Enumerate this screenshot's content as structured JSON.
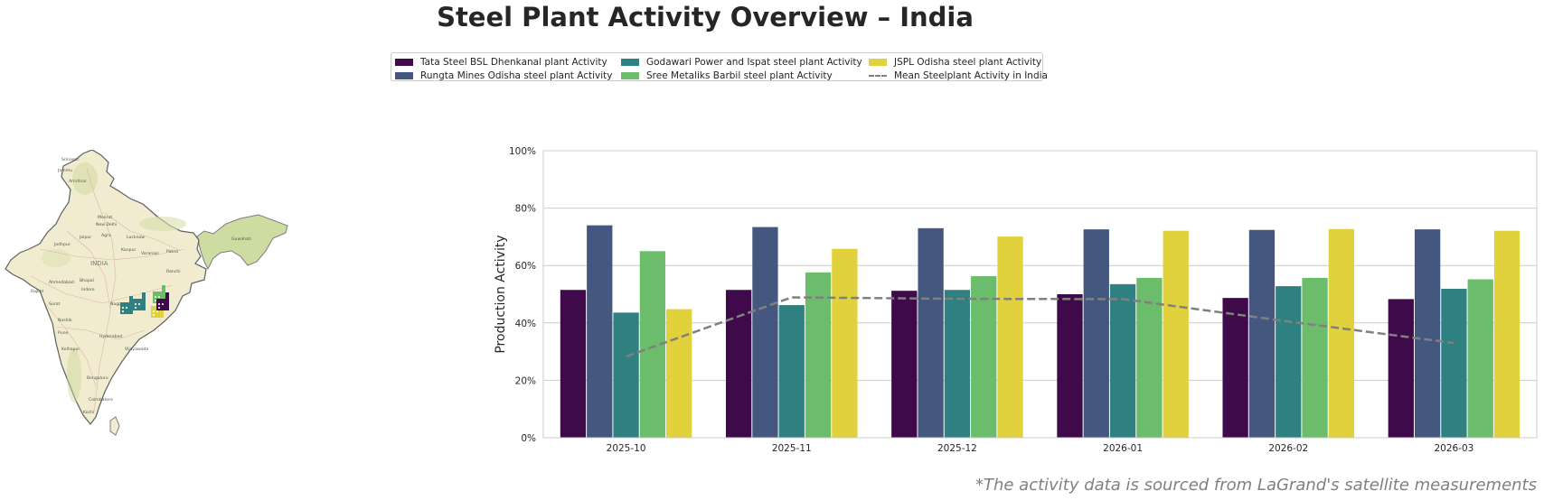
{
  "title": "Steel Plant Activity Overview – India",
  "footnote": "*The activity data is sourced from LaGrand's satellite measurements",
  "legend": {
    "entries": [
      {
        "label": "Tata Steel BSL Dhenkanal plant Activity",
        "color": "#3f0a49",
        "kind": "bar"
      },
      {
        "label": "Rungta Mines Odisha steel plant Activity",
        "color": "#44577f",
        "kind": "bar"
      },
      {
        "label": "Godawari Power and Ispat steel plant Activity",
        "color": "#2e8180",
        "kind": "bar"
      },
      {
        "label": "Sree Metaliks Barbil steel plant Activity",
        "color": "#6cbd6b",
        "kind": "bar"
      },
      {
        "label": "JSPL Odisha steel plant Activity",
        "color": "#e1d13c",
        "kind": "bar"
      },
      {
        "label": "Mean Steelplant Activity in India",
        "color": "#808080",
        "kind": "dashed-line"
      }
    ]
  },
  "map": {
    "country_label": "INDIA",
    "city_labels": [
      "Srinagar",
      "Jammu",
      "Amritsar",
      "Meerut",
      "New Delhi",
      "Jaipur",
      "Agra",
      "Lucknow",
      "Jodhpur",
      "Kanpur",
      "Varanasi",
      "Patna",
      "Ranchi",
      "Guwahati",
      "Ahmedabad",
      "Bhopal",
      "Indore",
      "Rajkot",
      "Surat",
      "Nagpur",
      "Nashik",
      "Pune",
      "Hyderabad",
      "Kolhapur",
      "Vijayawada",
      "Bengaluru",
      "Coimbatore",
      "Kochi"
    ],
    "marker_icons": [
      "factory-icon",
      "factory-icon",
      "factory-icon",
      "factory-icon",
      "factory-icon"
    ]
  },
  "chart_data": {
    "type": "bar",
    "title": "",
    "xlabel": "",
    "ylabel": "Production Activity",
    "ylim": [
      0,
      100
    ],
    "y_tick_labels": [
      "0%",
      "20%",
      "40%",
      "60%",
      "80%",
      "100%"
    ],
    "grid": "horizontal",
    "categories": [
      "2025-10",
      "2025-11",
      "2025-12",
      "2026-01",
      "2026-02",
      "2026-03"
    ],
    "series": [
      {
        "name": "Tata Steel BSL Dhenkanal plant Activity",
        "color": "#3f0a49",
        "values": [
          51.5,
          51.5,
          51.2,
          50.0,
          48.7,
          48.3
        ]
      },
      {
        "name": "Rungta Mines Odisha steel plant Activity",
        "color": "#44577f",
        "values": [
          74.0,
          73.4,
          73.0,
          72.6,
          72.4,
          72.6
        ]
      },
      {
        "name": "Godawari Power and Ispat steel plant Activity",
        "color": "#2e8180",
        "values": [
          43.6,
          46.2,
          51.5,
          53.5,
          52.8,
          51.9
        ]
      },
      {
        "name": "Sree Metaliks Barbil steel plant Activity",
        "color": "#6cbd6b",
        "values": [
          65.0,
          57.6,
          56.3,
          55.7,
          55.7,
          55.2
        ]
      },
      {
        "name": "JSPL Odisha steel plant Activity",
        "color": "#e1d13c",
        "values": [
          44.8,
          65.8,
          70.1,
          72.1,
          72.7,
          72.1
        ]
      }
    ],
    "mean_line": {
      "name": "Mean Steelplant Activity in India",
      "color": "#808080",
      "style": "dashed",
      "values": [
        28.3,
        48.9,
        48.4,
        48.3,
        40.5,
        33.0
      ]
    }
  }
}
